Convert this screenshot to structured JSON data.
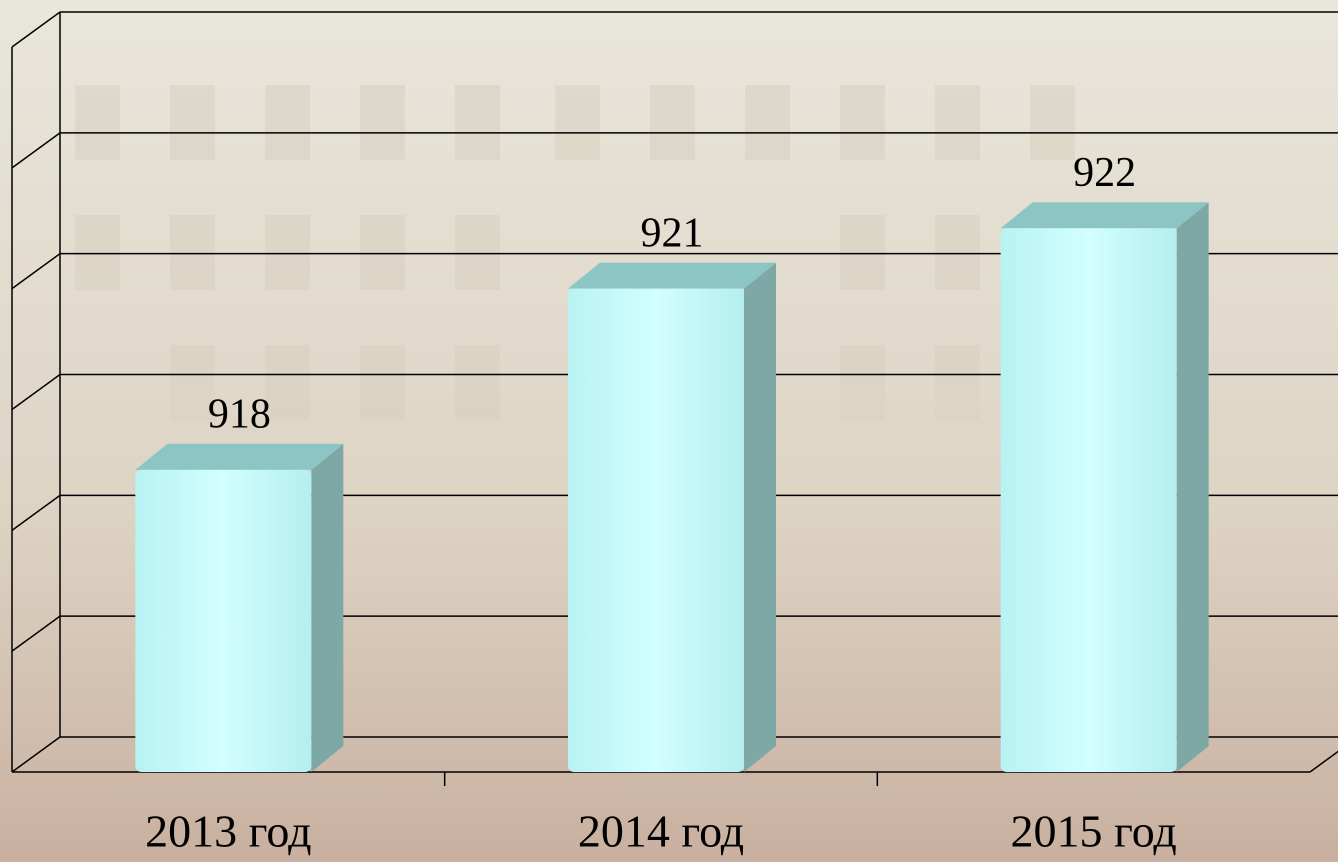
{
  "chart_data": {
    "type": "bar3d",
    "categories": [
      "2013 год",
      "2014 год",
      "2015 год"
    ],
    "values": [
      918,
      921,
      922
    ],
    "color": "#c8ffff",
    "ylim": [
      913,
      925
    ],
    "yticks": [
      913,
      915,
      917,
      919,
      921,
      923,
      925
    ],
    "grid": true
  }
}
